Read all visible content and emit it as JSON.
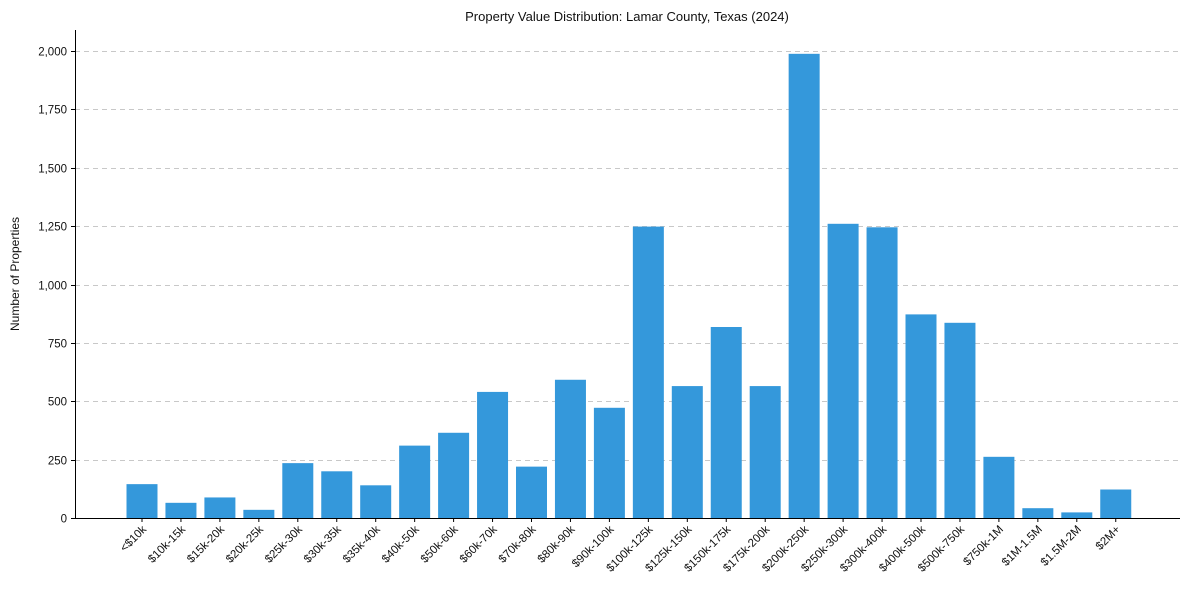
{
  "colors": {
    "bar": "#3498db",
    "grid": "#c8c8c8",
    "axis": "#000000"
  },
  "chart_data": {
    "type": "bar",
    "title": "Property Value Distribution: Lamar County, Texas (2024)",
    "xlabel": "",
    "ylabel": "Number of Properties",
    "ylim": [
      0,
      2090
    ],
    "yticks": [
      0,
      250,
      500,
      750,
      1000,
      1250,
      1500,
      1750,
      2000
    ],
    "ytick_labels": [
      "0",
      "250",
      "500",
      "750",
      "1,000",
      "1,250",
      "1,500",
      "1,750",
      "2,000"
    ],
    "grid": "y-dashed",
    "categories": [
      "<$10k",
      "$10k-15k",
      "$15k-20k",
      "$20k-25k",
      "$25k-30k",
      "$30k-35k",
      "$35k-40k",
      "$40k-50k",
      "$50k-60k",
      "$60k-70k",
      "$70k-80k",
      "$80k-90k",
      "$90k-100k",
      "$100k-125k",
      "$125k-150k",
      "$150k-175k",
      "$175k-200k",
      "$200k-250k",
      "$250k-300k",
      "$300k-400k",
      "$400k-500k",
      "$500k-750k",
      "$750k-1M",
      "$1M-1.5M",
      "$1.5M-2M",
      "$2M+"
    ],
    "values": [
      145,
      65,
      88,
      35,
      235,
      200,
      140,
      310,
      365,
      540,
      220,
      592,
      472,
      1248,
      565,
      818,
      565,
      1988,
      1260,
      1245,
      872,
      836,
      262,
      42,
      24,
      122
    ]
  }
}
